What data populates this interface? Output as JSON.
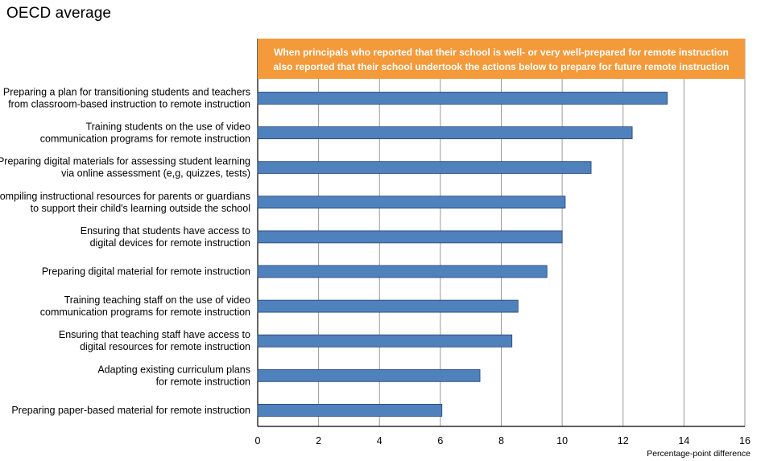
{
  "title": "OECD average",
  "chart_data": {
    "type": "bar",
    "orientation": "horizontal",
    "banner": {
      "lines": [
        "When principals who reported that their school is well- or very well-prepared for remote instruction",
        "also reported that their school undertook the actions below to prepare for future remote instruction"
      ],
      "color": "#F49A3A"
    },
    "categories": [
      [
        "Preparing a plan for transitioning students and teachers",
        "from classroom-based instruction to remote instruction"
      ],
      [
        "Training students on the use of video",
        "communication programs for remote instruction"
      ],
      [
        "Preparing digital materials for assessing student learning",
        "via online assessment (e,g, quizzes, tests)"
      ],
      [
        "Compiling instructional resources for parents or guardians",
        "to support their child's learning outside the school"
      ],
      [
        "Ensuring that students have access to",
        "digital devices for remote instruction"
      ],
      [
        "Preparing digital material for remote instruction"
      ],
      [
        "Training teaching staff on the use of video",
        "communication programs for remote instruction"
      ],
      [
        "Ensuring that teaching staff have access to",
        "digital resources for remote instruction"
      ],
      [
        "Adapting existing curriculum plans",
        "for remote instruction"
      ],
      [
        "Preparing paper-based material for remote instruction"
      ]
    ],
    "values": [
      13.45,
      12.3,
      10.95,
      10.1,
      10.0,
      9.5,
      8.55,
      8.35,
      7.3,
      6.05
    ],
    "xlim": [
      0,
      16
    ],
    "xticks": [
      0,
      2,
      4,
      6,
      8,
      10,
      12,
      14,
      16
    ],
    "xlabel": "Percentage-point difference",
    "grid": "vertical",
    "bar_color": "#4F81BD",
    "bar_stroke": "#23406E"
  }
}
